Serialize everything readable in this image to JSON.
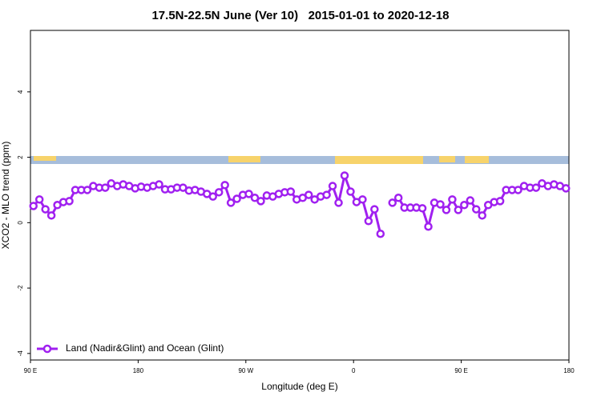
{
  "chart_data": {
    "type": "line",
    "title": "17.5N-22.5N June (Ver 10)   2015-01-01 to 2020-12-18",
    "xlabel": "Longitude (deg E)",
    "ylabel": "XCO2 - MLO trend (ppm)",
    "x": [
      92.5,
      97.5,
      102.5,
      107.5,
      112.5,
      117.5,
      122.5,
      127.5,
      132.5,
      137.5,
      142.5,
      147.5,
      152.5,
      157.5,
      162.5,
      167.5,
      172.5,
      177.5,
      182.5,
      187.5,
      192.5,
      197.5,
      202.5,
      207.5,
      212.5,
      217.5,
      222.5,
      227.5,
      232.5,
      237.5,
      242.5,
      247.5,
      252.5,
      257.5,
      262.5,
      267.5,
      272.5,
      277.5,
      282.5,
      287.5,
      292.5,
      297.5,
      302.5,
      307.5,
      312.5,
      317.5,
      322.5,
      327.5,
      332.5,
      337.5,
      342.5,
      347.5,
      352.5,
      357.5,
      362.5,
      367.5,
      372.5,
      377.5,
      382.5,
      387.5,
      392.5,
      397.5,
      402.5,
      407.5,
      412.5,
      417.5,
      422.5,
      427.5,
      432.5,
      437.5,
      442.5,
      447.5,
      452.5,
      457.5,
      462.5,
      467.5,
      472.5,
      477.5,
      482.5,
      487.5,
      492.5,
      497.5,
      502.5,
      507.5,
      512.5,
      517.5,
      522.5,
      527.5,
      532.5,
      537.5
    ],
    "series": [
      {
        "name": "Land (Nadir&Glint) and Ocean (Glint)",
        "color": "#a020f0",
        "values": [
          0.51,
          0.71,
          0.41,
          0.22,
          0.54,
          0.63,
          0.66,
          1.0,
          1.0,
          1.0,
          1.12,
          1.07,
          1.07,
          1.2,
          1.12,
          1.17,
          1.12,
          1.05,
          1.1,
          1.07,
          1.12,
          1.17,
          1.02,
          1.02,
          1.07,
          1.07,
          0.98,
          1.0,
          0.95,
          0.88,
          0.8,
          0.93,
          1.15,
          0.61,
          0.73,
          0.85,
          0.88,
          0.76,
          0.66,
          0.83,
          0.8,
          0.88,
          0.93,
          0.95,
          0.71,
          0.76,
          0.85,
          0.71,
          0.8,
          0.85,
          1.12,
          0.61,
          1.44,
          0.95,
          0.63,
          0.71,
          0.05,
          0.41,
          -0.34,
          null,
          0.61,
          0.76,
          0.46,
          0.46,
          0.46,
          0.44,
          -0.12,
          0.61,
          0.56,
          0.39,
          0.71,
          0.39,
          0.54,
          0.68,
          0.41,
          0.22,
          0.54,
          0.63,
          0.66,
          1.0,
          1.0,
          1.0,
          1.12,
          1.07,
          1.07,
          1.2,
          1.12,
          1.17,
          1.12,
          1.05
        ]
      }
    ],
    "xlim": [
      90,
      540
    ],
    "xticks": [
      {
        "value": 90,
        "label": "90 E"
      },
      180,
      {
        "value": 270,
        "label": "90 W"
      },
      {
        "value": 360,
        "label": "0"
      },
      {
        "value": 450,
        "label": "90 E"
      },
      {
        "value": 540,
        "label": "180"
      }
    ],
    "ylim": [
      -4.2,
      5.88
    ],
    "yticks": [
      -4,
      -2,
      0,
      2,
      4
    ],
    "legend": "bottom-left"
  }
}
